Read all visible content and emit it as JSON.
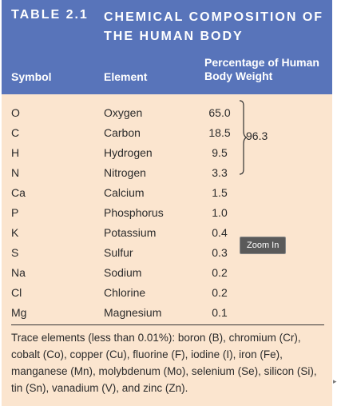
{
  "title": {
    "number": "TABLE 2.1",
    "text": "CHEMICAL COMPOSITION OF THE HUMAN BODY"
  },
  "columns": {
    "symbol": "Symbol",
    "element": "Element",
    "percentage": "Percentage of Human Body Weight"
  },
  "rows": [
    {
      "symbol": "O",
      "element": "Oxygen",
      "pct": "65.0"
    },
    {
      "symbol": "C",
      "element": "Carbon",
      "pct": "18.5"
    },
    {
      "symbol": "H",
      "element": "Hydrogen",
      "pct": "9.5"
    },
    {
      "symbol": "N",
      "element": "Nitrogen",
      "pct": "3.3"
    },
    {
      "symbol": "Ca",
      "element": "Calcium",
      "pct": "1.5"
    },
    {
      "symbol": "P",
      "element": "Phosphorus",
      "pct": "1.0"
    },
    {
      "symbol": "K",
      "element": "Potassium",
      "pct": "0.4"
    },
    {
      "symbol": "S",
      "element": "Sulfur",
      "pct": "0.3"
    },
    {
      "symbol": "Na",
      "element": "Sodium",
      "pct": "0.2"
    },
    {
      "symbol": "Cl",
      "element": "Chlorine",
      "pct": "0.2"
    },
    {
      "symbol": "Mg",
      "element": "Magnesium",
      "pct": "0.1"
    }
  ],
  "brace_total": "96.3",
  "trace_note": "Trace elements (less than 0.01%): boron (B), chromium (Cr), cobalt (Co), copper (Cu), fluorine (F), iodine (I), iron (Fe), manganese (Mn), molybdenum (Mo), selenium (Se), silicon (Si), tin (Sn), vanadium (V), and zinc (Zn).",
  "zoom_button": "Zoom In",
  "colors": {
    "header": "#5874ba",
    "body": "#fbe5cf"
  }
}
